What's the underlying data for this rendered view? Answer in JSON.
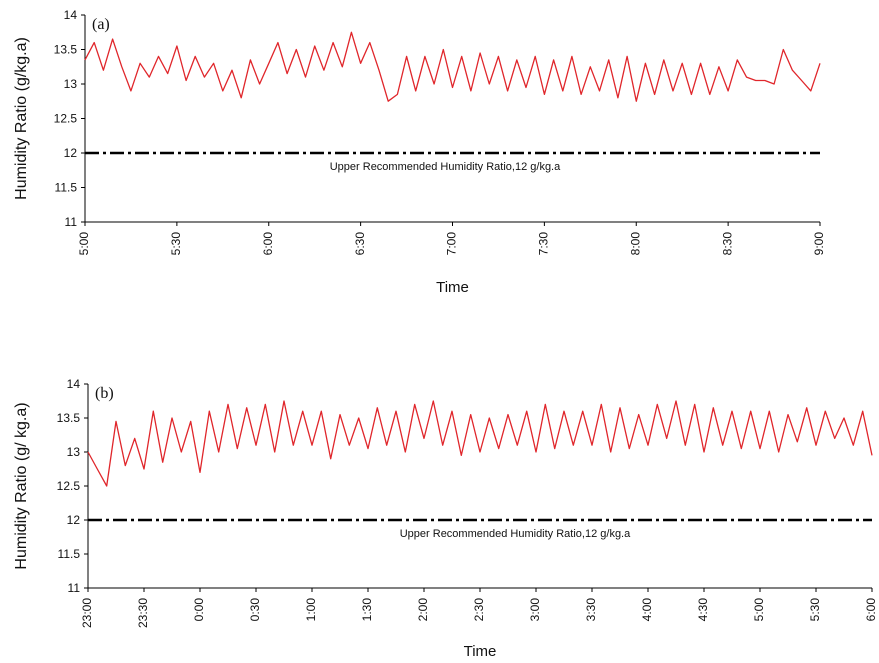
{
  "colors": {
    "series": "#e0262b",
    "reference": "#000000",
    "axis": "#000000"
  },
  "chart_data": [
    {
      "type": "line",
      "panel_label": "(a)",
      "xlabel": "Time",
      "ylabel": "Humidity Ratio (g/kg.a)",
      "ylim": [
        11,
        14
      ],
      "yticks": [
        "11",
        "11.5",
        "12",
        "12.5",
        "13",
        "13.5",
        "14"
      ],
      "x_range_hours": [
        5,
        9
      ],
      "xticks": [
        "5:00",
        "5:30",
        "6:00",
        "6:30",
        "7:00",
        "7:30",
        "8:00",
        "8:30",
        "9:00"
      ],
      "reference_line": {
        "value": 12,
        "label": "Upper Recommended Humidity Ratio,12 g/kg.a",
        "style": "dash-dot"
      },
      "series": [
        {
          "x": [
            "5:00",
            "5:03",
            "5:06",
            "5:09",
            "5:12",
            "5:15",
            "5:18",
            "5:21",
            "5:24",
            "5:27",
            "5:30",
            "5:33",
            "5:36",
            "5:39",
            "5:42",
            "5:45",
            "5:48",
            "5:51",
            "5:54",
            "5:57",
            "6:00",
            "6:03",
            "6:06",
            "6:09",
            "6:12",
            "6:15",
            "6:18",
            "6:21",
            "6:24",
            "6:27",
            "6:30",
            "6:33",
            "6:36",
            "6:39",
            "6:42",
            "6:45",
            "6:48",
            "6:51",
            "6:54",
            "6:57",
            "7:00",
            "7:03",
            "7:06",
            "7:09",
            "7:12",
            "7:15",
            "7:18",
            "7:21",
            "7:24",
            "7:27",
            "7:30",
            "7:33",
            "7:36",
            "7:39",
            "7:42",
            "7:45",
            "7:48",
            "7:51",
            "7:54",
            "7:57",
            "8:00",
            "8:03",
            "8:06",
            "8:09",
            "8:12",
            "8:15",
            "8:18",
            "8:21",
            "8:24",
            "8:27",
            "8:30",
            "8:33",
            "8:36",
            "8:39",
            "8:42",
            "8:45",
            "8:48",
            "8:51",
            "8:54",
            "8:57",
            "9:00"
          ],
          "values": [
            13.35,
            13.6,
            13.2,
            13.65,
            13.25,
            12.9,
            13.3,
            13.1,
            13.4,
            13.15,
            13.55,
            13.05,
            13.4,
            13.1,
            13.3,
            12.9,
            13.2,
            12.8,
            13.35,
            13.0,
            13.3,
            13.6,
            13.15,
            13.5,
            13.1,
            13.55,
            13.2,
            13.6,
            13.25,
            13.75,
            13.3,
            13.6,
            13.2,
            12.75,
            12.85,
            13.4,
            12.9,
            13.4,
            13.0,
            13.5,
            12.95,
            13.4,
            12.9,
            13.45,
            13.0,
            13.4,
            12.9,
            13.35,
            12.95,
            13.4,
            12.85,
            13.35,
            12.9,
            13.4,
            12.85,
            13.25,
            12.9,
            13.35,
            12.8,
            13.4,
            12.75,
            13.3,
            12.85,
            13.35,
            12.9,
            13.3,
            12.85,
            13.3,
            12.85,
            13.25,
            12.9,
            13.35,
            13.1,
            13.05,
            13.05,
            13.0,
            13.5,
            13.2,
            13.05,
            12.9,
            13.3
          ]
        }
      ]
    },
    {
      "type": "line",
      "panel_label": "(b)",
      "xlabel": "Time",
      "ylabel": "Humidity Ratio (g/ kg.a)",
      "ylim": [
        11,
        14
      ],
      "yticks": [
        "11",
        "11.5",
        "12",
        "12.5",
        "13",
        "13.5",
        "14"
      ],
      "x_range_hours": [
        23,
        30
      ],
      "xticks": [
        "23:00",
        "23:30",
        "0:00",
        "0:30",
        "1:00",
        "1:30",
        "2:00",
        "2:30",
        "3:00",
        "3:30",
        "4:00",
        "4:30",
        "5:00",
        "5:30",
        "6:00"
      ],
      "reference_line": {
        "value": 12,
        "label": "Upper Recommended Humidity Ratio,12 g/kg.a",
        "style": "dash-dot"
      },
      "series": [
        {
          "x": [
            "23:00",
            "23:05",
            "23:10",
            "23:15",
            "23:20",
            "23:25",
            "23:30",
            "23:35",
            "23:40",
            "23:45",
            "23:50",
            "23:55",
            "0:00",
            "0:05",
            "0:10",
            "0:15",
            "0:20",
            "0:25",
            "0:30",
            "0:35",
            "0:40",
            "0:45",
            "0:50",
            "0:55",
            "1:00",
            "1:05",
            "1:10",
            "1:15",
            "1:20",
            "1:25",
            "1:30",
            "1:35",
            "1:40",
            "1:45",
            "1:50",
            "1:55",
            "2:00",
            "2:05",
            "2:10",
            "2:15",
            "2:20",
            "2:25",
            "2:30",
            "2:35",
            "2:40",
            "2:45",
            "2:50",
            "2:55",
            "3:00",
            "3:05",
            "3:10",
            "3:15",
            "3:20",
            "3:25",
            "3:30",
            "3:35",
            "3:40",
            "3:45",
            "3:50",
            "3:55",
            "4:00",
            "4:05",
            "4:10",
            "4:15",
            "4:20",
            "4:25",
            "4:30",
            "4:35",
            "4:40",
            "4:45",
            "4:50",
            "4:55",
            "5:00",
            "5:05",
            "5:10",
            "5:15",
            "5:20",
            "5:25",
            "5:30",
            "5:35",
            "5:40",
            "5:45",
            "5:50",
            "5:55",
            "6:00"
          ],
          "values": [
            13.0,
            12.75,
            12.5,
            13.45,
            12.8,
            13.2,
            12.75,
            13.6,
            12.85,
            13.5,
            13.0,
            13.45,
            12.7,
            13.6,
            13.0,
            13.7,
            13.05,
            13.65,
            13.1,
            13.7,
            13.0,
            13.75,
            13.1,
            13.6,
            13.1,
            13.6,
            12.9,
            13.55,
            13.1,
            13.5,
            13.05,
            13.65,
            13.1,
            13.6,
            13.0,
            13.7,
            13.2,
            13.75,
            13.1,
            13.6,
            12.95,
            13.55,
            13.0,
            13.5,
            13.05,
            13.55,
            13.1,
            13.6,
            13.0,
            13.7,
            13.05,
            13.6,
            13.1,
            13.6,
            13.1,
            13.7,
            13.0,
            13.65,
            13.05,
            13.55,
            13.1,
            13.7,
            13.2,
            13.75,
            13.1,
            13.7,
            13.0,
            13.65,
            13.1,
            13.6,
            13.05,
            13.6,
            13.05,
            13.6,
            13.0,
            13.55,
            13.15,
            13.65,
            13.1,
            13.6,
            13.2,
            13.5,
            13.1,
            13.6,
            12.95
          ]
        }
      ]
    }
  ]
}
